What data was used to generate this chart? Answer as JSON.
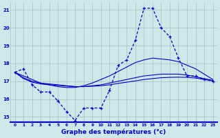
{
  "title": "Graphe des températures (°c)",
  "xlim": [
    -0.5,
    23.5
  ],
  "ylim": [
    14.7,
    21.4
  ],
  "yticks": [
    15,
    16,
    17,
    18,
    19,
    20,
    21
  ],
  "xticks": [
    0,
    1,
    2,
    3,
    4,
    5,
    6,
    7,
    8,
    9,
    10,
    11,
    12,
    13,
    14,
    15,
    16,
    17,
    18,
    19,
    20,
    21,
    22,
    23
  ],
  "background_color": "#cce8e8",
  "grid_color": "#aabcbc",
  "line_color": "#0000cc",
  "series": {
    "actual": {
      "x": [
        0,
        1,
        2,
        3,
        4,
        5,
        6,
        7,
        8,
        9,
        10,
        11,
        12,
        13,
        14,
        15,
        16,
        17,
        18,
        19,
        20,
        21,
        22,
        23
      ],
      "y": [
        17.5,
        17.7,
        16.8,
        16.4,
        16.4,
        15.9,
        15.3,
        14.8,
        15.5,
        15.5,
        15.5,
        16.5,
        17.9,
        18.2,
        19.3,
        21.1,
        21.1,
        20.0,
        19.5,
        18.3,
        17.3,
        17.3,
        17.1,
        17.0
      ]
    },
    "smooth_high": {
      "x": [
        0,
        1,
        2,
        3,
        4,
        5,
        6,
        7,
        8,
        9,
        10,
        11,
        12,
        13,
        14,
        15,
        16,
        17,
        18,
        19,
        20,
        21,
        22,
        23
      ],
      "y": [
        17.5,
        17.3,
        17.1,
        16.9,
        16.8,
        16.7,
        16.65,
        16.65,
        16.75,
        16.9,
        17.1,
        17.3,
        17.55,
        17.8,
        18.05,
        18.2,
        18.3,
        18.25,
        18.2,
        18.1,
        17.9,
        17.7,
        17.4,
        17.1
      ]
    },
    "smooth_mid": {
      "x": [
        0,
        1,
        2,
        3,
        4,
        5,
        6,
        7,
        8,
        9,
        10,
        11,
        12,
        13,
        14,
        15,
        16,
        17,
        18,
        19,
        20,
        21,
        22,
        23
      ],
      "y": [
        17.5,
        17.2,
        17.0,
        16.9,
        16.85,
        16.8,
        16.75,
        16.7,
        16.7,
        16.75,
        16.8,
        16.9,
        17.0,
        17.1,
        17.2,
        17.3,
        17.35,
        17.4,
        17.4,
        17.4,
        17.35,
        17.25,
        17.15,
        17.05
      ]
    },
    "smooth_low": {
      "x": [
        0,
        1,
        2,
        3,
        4,
        5,
        6,
        7,
        8,
        9,
        10,
        11,
        12,
        13,
        14,
        15,
        16,
        17,
        18,
        19,
        20,
        21,
        22,
        23
      ],
      "y": [
        17.5,
        17.15,
        16.95,
        16.85,
        16.8,
        16.77,
        16.73,
        16.7,
        16.7,
        16.72,
        16.75,
        16.8,
        16.88,
        16.95,
        17.02,
        17.1,
        17.15,
        17.2,
        17.22,
        17.23,
        17.22,
        17.18,
        17.1,
        17.02
      ]
    }
  }
}
